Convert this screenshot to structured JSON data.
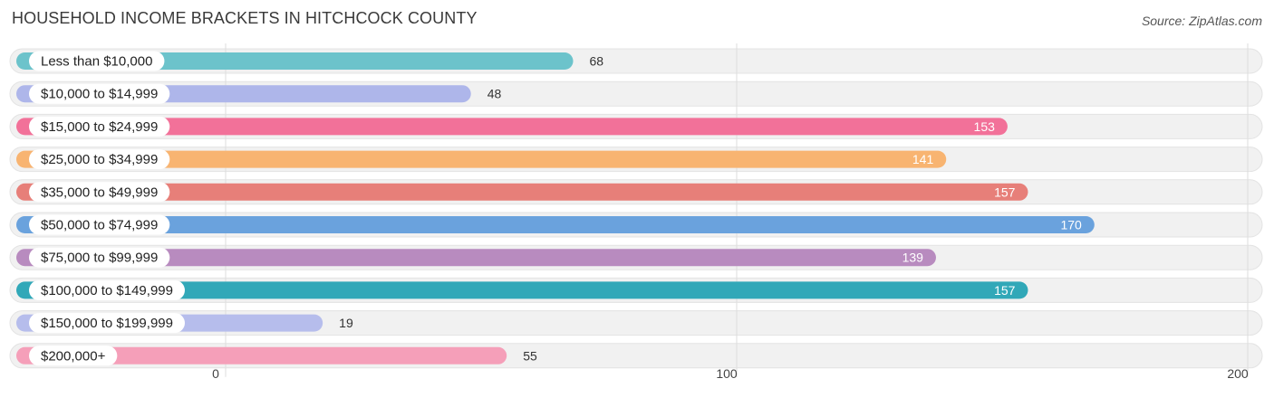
{
  "chart_data": {
    "type": "bar",
    "orientation": "horizontal",
    "title": "HOUSEHOLD INCOME BRACKETS IN HITCHCOCK COUNTY",
    "source": "Source: ZipAtlas.com",
    "categories": [
      "Less than $10,000",
      "$10,000 to $14,999",
      "$15,000 to $24,999",
      "$25,000 to $34,999",
      "$35,000 to $49,999",
      "$50,000 to $74,999",
      "$75,000 to $99,999",
      "$100,000 to $149,999",
      "$150,000 to $199,999",
      "$200,000+"
    ],
    "values": [
      68,
      48,
      153,
      141,
      157,
      170,
      139,
      157,
      19,
      55
    ],
    "value_labels": [
      "68",
      "48",
      "153",
      "141",
      "157",
      "170",
      "139",
      "157",
      "19",
      "55"
    ],
    "colors": [
      "#6cc3cb",
      "#aeb6ea",
      "#f27199",
      "#f8b471",
      "#e77f79",
      "#6aa2dd",
      "#b88bbf",
      "#31a8b8",
      "#b6bdec",
      "#f59fb9"
    ],
    "xlim": [
      0,
      200
    ],
    "xticks": [
      0,
      100,
      200
    ],
    "xtick_labels": [
      "0",
      "100",
      "200"
    ],
    "grid": true,
    "legend": "none"
  }
}
